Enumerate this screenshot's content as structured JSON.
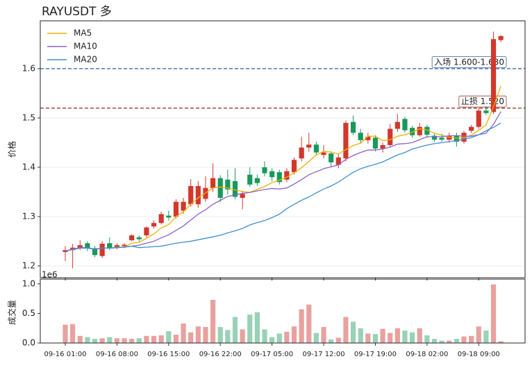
{
  "chart_data": {
    "type": "candlestick",
    "title": "RAYUSDT  多",
    "ylabel": "价格",
    "categories": [
      "09-16 01:00",
      null,
      null,
      null,
      null,
      null,
      null,
      "09-16 08:00",
      null,
      null,
      null,
      null,
      null,
      null,
      "09-16 15:00",
      null,
      null,
      null,
      null,
      null,
      null,
      "09-16 22:00",
      null,
      null,
      null,
      null,
      null,
      null,
      "09-17 05:00",
      null,
      null,
      null,
      null,
      null,
      null,
      "09-17 12:00",
      null,
      null,
      null,
      null,
      null,
      null,
      "09-17 19:00",
      null,
      null,
      null,
      null,
      null,
      null,
      "09-18 02:00",
      null,
      null,
      null,
      null,
      null,
      null,
      "09-18 09:00",
      null,
      null,
      null
    ],
    "open": [
      1.228,
      1.232,
      1.237,
      1.246,
      1.236,
      1.22,
      1.246,
      1.238,
      1.24,
      1.252,
      1.258,
      1.262,
      1.28,
      1.287,
      1.302,
      1.3,
      1.312,
      1.325,
      1.325,
      1.336,
      1.358,
      1.378,
      1.375,
      1.372,
      1.338,
      1.385,
      1.378,
      1.4,
      1.392,
      1.39,
      1.375,
      1.39,
      1.418,
      1.44,
      1.446,
      1.425,
      1.428,
      1.405,
      1.418,
      1.492,
      1.47,
      1.455,
      1.46,
      1.438,
      1.445,
      1.478,
      1.498,
      1.48,
      1.465,
      1.482,
      1.464,
      1.46,
      1.456,
      1.465,
      1.452,
      1.474,
      1.482,
      1.515,
      1.512,
      1.658
    ],
    "high": [
      1.24,
      1.245,
      1.252,
      1.25,
      1.24,
      1.25,
      1.258,
      1.246,
      1.246,
      1.264,
      1.262,
      1.28,
      1.292,
      1.31,
      1.312,
      1.335,
      1.338,
      1.376,
      1.372,
      1.382,
      1.408,
      1.384,
      1.395,
      1.398,
      1.352,
      1.4,
      1.385,
      1.412,
      1.398,
      1.395,
      1.398,
      1.42,
      1.462,
      1.47,
      1.452,
      1.445,
      1.432,
      1.428,
      1.495,
      1.505,
      1.478,
      1.47,
      1.465,
      1.45,
      1.488,
      1.508,
      1.502,
      1.484,
      1.49,
      1.486,
      1.468,
      1.468,
      1.47,
      1.47,
      1.474,
      1.486,
      1.52,
      1.524,
      1.675,
      1.668
    ],
    "low": [
      1.21,
      1.195,
      1.232,
      1.23,
      1.218,
      1.216,
      1.232,
      1.234,
      1.236,
      1.25,
      1.25,
      1.258,
      1.276,
      1.284,
      1.292,
      1.296,
      1.306,
      1.32,
      1.318,
      1.33,
      1.35,
      1.33,
      1.345,
      1.335,
      1.315,
      1.36,
      1.362,
      1.382,
      1.372,
      1.365,
      1.37,
      1.385,
      1.412,
      1.432,
      1.425,
      1.418,
      1.4,
      1.398,
      1.412,
      1.465,
      1.448,
      1.448,
      1.432,
      1.43,
      1.44,
      1.472,
      1.47,
      1.46,
      1.462,
      1.46,
      1.452,
      1.452,
      1.45,
      1.442,
      1.448,
      1.47,
      1.478,
      1.506,
      1.508,
      1.654
    ],
    "close": [
      1.232,
      1.237,
      1.242,
      1.236,
      1.222,
      1.245,
      1.236,
      1.242,
      1.243,
      1.262,
      1.254,
      1.278,
      1.287,
      1.305,
      1.298,
      1.33,
      1.33,
      1.362,
      1.362,
      1.358,
      1.378,
      1.338,
      1.355,
      1.34,
      1.346,
      1.365,
      1.368,
      1.388,
      1.38,
      1.37,
      1.392,
      1.415,
      1.44,
      1.446,
      1.43,
      1.43,
      1.41,
      1.42,
      1.49,
      1.47,
      1.455,
      1.462,
      1.438,
      1.445,
      1.478,
      1.492,
      1.475,
      1.465,
      1.482,
      1.466,
      1.456,
      1.456,
      1.464,
      1.452,
      1.47,
      1.482,
      1.515,
      1.51,
      1.66,
      1.666
    ],
    "up_color": "#d2372c",
    "down_color": "#17995a",
    "volume_up_color": "#e8a29e",
    "volume_down_color": "#98d2b6",
    "series": [
      {
        "name": "MA5",
        "color": "#f0b000",
        "values": [
          1.23,
          1.234,
          1.237,
          1.237,
          1.234,
          1.236,
          1.236,
          1.238,
          1.238,
          1.246,
          1.248,
          1.256,
          1.265,
          1.277,
          1.284,
          1.3,
          1.31,
          1.325,
          1.338,
          1.348,
          1.358,
          1.36,
          1.358,
          1.354,
          1.351,
          1.349,
          1.355,
          1.361,
          1.369,
          1.374,
          1.38,
          1.389,
          1.399,
          1.412,
          1.425,
          1.432,
          1.431,
          1.427,
          1.436,
          1.444,
          1.449,
          1.463,
          1.463,
          1.454,
          1.456,
          1.463,
          1.466,
          1.471,
          1.478,
          1.476,
          1.469,
          1.465,
          1.461,
          1.459,
          1.46,
          1.465,
          1.475,
          1.486,
          1.523,
          1.565
        ]
      },
      {
        "name": "MA10",
        "color": "#8a62cc",
        "values": [
          1.23,
          1.234,
          1.237,
          1.237,
          1.234,
          1.236,
          1.236,
          1.237,
          1.238,
          1.24,
          1.242,
          1.246,
          1.25,
          1.257,
          1.263,
          1.272,
          1.281,
          1.293,
          1.305,
          1.314,
          1.325,
          1.333,
          1.341,
          1.344,
          1.347,
          1.349,
          1.352,
          1.355,
          1.357,
          1.356,
          1.358,
          1.366,
          1.375,
          1.385,
          1.391,
          1.397,
          1.401,
          1.405,
          1.416,
          1.424,
          1.43,
          1.435,
          1.435,
          1.437,
          1.441,
          1.447,
          1.448,
          1.45,
          1.456,
          1.462,
          1.462,
          1.462,
          1.464,
          1.464,
          1.463,
          1.463,
          1.466,
          1.469,
          1.487,
          1.513
        ]
      },
      {
        "name": "MA20",
        "color": "#3f8fd2",
        "values": [
          1.23,
          1.233,
          1.236,
          1.236,
          1.234,
          1.236,
          1.236,
          1.237,
          1.238,
          1.24,
          1.237,
          1.238,
          1.239,
          1.24,
          1.243,
          1.246,
          1.248,
          1.25,
          1.253,
          1.256,
          1.259,
          1.262,
          1.267,
          1.271,
          1.276,
          1.283,
          1.288,
          1.292,
          1.298,
          1.305,
          1.316,
          1.325,
          1.333,
          1.34,
          1.348,
          1.356,
          1.362,
          1.37,
          1.38,
          1.39,
          1.397,
          1.402,
          1.406,
          1.411,
          1.418,
          1.425,
          1.43,
          1.437,
          1.441,
          1.445,
          1.448,
          1.45,
          1.452,
          1.454,
          1.457,
          1.46,
          1.466,
          1.474,
          1.481,
          1.49
        ]
      }
    ],
    "ylim": [
      1.176,
      1.697
    ],
    "yticks": [
      1.2,
      1.3,
      1.4,
      1.5,
      1.6
    ],
    "hlines": [
      {
        "value": 1.6,
        "label": "入场 1.600-1.630",
        "color": "#2f5f9e"
      },
      {
        "value": 1.52,
        "label": "止损 1.520",
        "color": "#9a3b34"
      }
    ],
    "legend": "upper left",
    "volume": {
      "label": "成交量",
      "offset_label": "1e6",
      "ylim": [
        0,
        1.08
      ],
      "yticks": [
        {
          "value": 0,
          "label": "0.0"
        },
        0.5,
        {
          "value": 1,
          "label": "1.0"
        }
      ],
      "values": [
        0.31,
        0.32,
        0.12,
        0.1,
        0.07,
        0.08,
        0.1,
        0.08,
        0.08,
        0.07,
        0.08,
        0.12,
        0.12,
        0.13,
        0.2,
        0.14,
        0.33,
        0.18,
        0.28,
        0.27,
        0.73,
        0.27,
        0.22,
        0.44,
        0.23,
        0.48,
        0.52,
        0.23,
        0.1,
        0.16,
        0.19,
        0.28,
        0.57,
        0.65,
        0.17,
        0.27,
        0.06,
        0.09,
        0.44,
        0.36,
        0.25,
        0.16,
        0.15,
        0.24,
        0.17,
        0.25,
        0.21,
        0.18,
        0.25,
        0.13,
        0.07,
        0.04,
        0.04,
        0.07,
        0.11,
        0.12,
        0.28,
        0.21,
        0.99,
        0.03
      ]
    }
  }
}
